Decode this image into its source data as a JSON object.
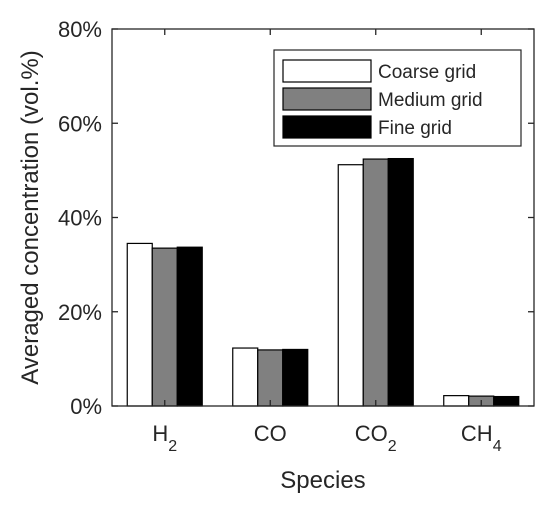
{
  "chart_data": {
    "type": "bar",
    "categories": [
      "H2",
      "CO",
      "CO2",
      "CH4"
    ],
    "category_labels": [
      {
        "base": "H",
        "sub": "2"
      },
      {
        "base": "CO",
        "sub": ""
      },
      {
        "base": "CO",
        "sub": "2"
      },
      {
        "base": "CH",
        "sub": "4"
      }
    ],
    "series": [
      {
        "name": "Coarse grid",
        "color": "#ffffff",
        "values": [
          34.5,
          12.3,
          51.2,
          2.2
        ]
      },
      {
        "name": "Medium grid",
        "color": "#808080",
        "values": [
          33.5,
          11.9,
          52.4,
          2.1
        ]
      },
      {
        "name": "Fine grid",
        "color": "#000000",
        "values": [
          33.7,
          12.0,
          52.5,
          2.0
        ]
      }
    ],
    "title": "",
    "xlabel": "Species",
    "ylabel": "Averaged concentration (vol.%)",
    "ylim": [
      0,
      80
    ],
    "yticks": [
      0,
      20,
      40,
      60,
      80
    ],
    "ytick_labels": [
      "0%",
      "20%",
      "40%",
      "60%",
      "80%"
    ],
    "grid": false,
    "legend_position": "top-right"
  }
}
